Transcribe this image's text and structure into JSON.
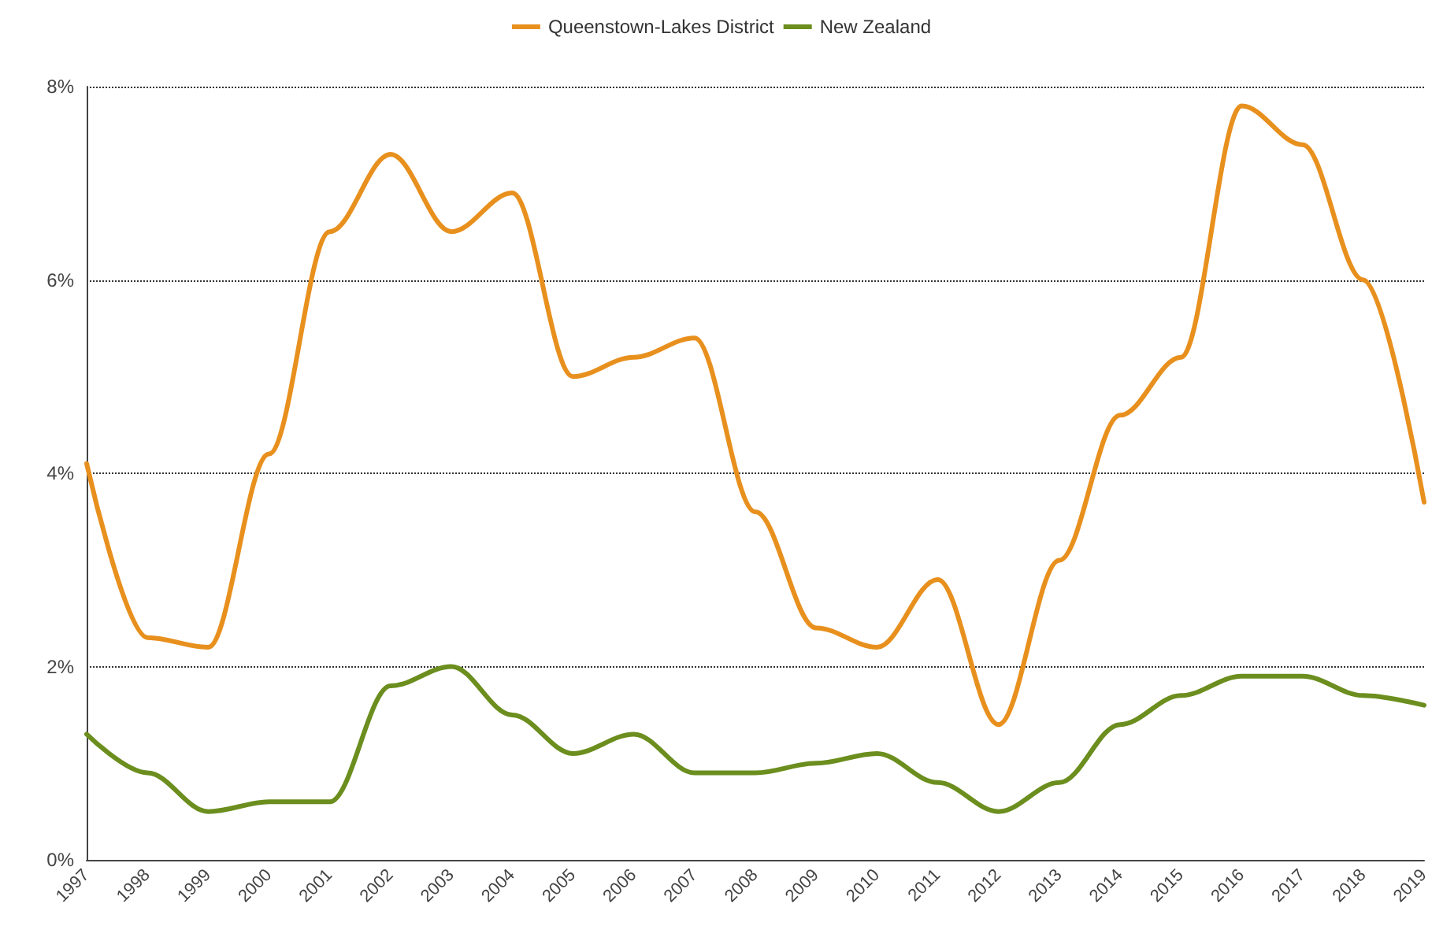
{
  "chart_data": {
    "type": "line",
    "categories": [
      "1997",
      "1998",
      "1999",
      "2000",
      "2001",
      "2002",
      "2003",
      "2004",
      "2005",
      "2006",
      "2007",
      "2008",
      "2009",
      "2010",
      "2011",
      "2012",
      "2013",
      "2014",
      "2015",
      "2016",
      "2017",
      "2018",
      "2019"
    ],
    "series": [
      {
        "name": "Queenstown-Lakes District",
        "color": "#e8901e",
        "values": [
          4.1,
          2.3,
          2.2,
          4.2,
          6.5,
          7.3,
          6.5,
          6.9,
          5.0,
          5.2,
          5.4,
          3.6,
          2.4,
          2.2,
          2.9,
          1.4,
          3.1,
          4.6,
          5.2,
          7.8,
          7.4,
          6.0,
          3.7
        ]
      },
      {
        "name": "New Zealand",
        "color": "#6b8e1e",
        "values": [
          1.3,
          0.9,
          0.5,
          0.6,
          0.6,
          1.8,
          2.0,
          1.5,
          1.1,
          1.3,
          0.9,
          0.9,
          1.0,
          1.1,
          0.8,
          0.5,
          0.8,
          1.4,
          1.7,
          1.9,
          1.9,
          1.7,
          1.6
        ]
      }
    ],
    "ylim": [
      0,
      8
    ],
    "yticks": [
      {
        "value": 0,
        "label": "0%"
      },
      {
        "value": 2,
        "label": "2%"
      },
      {
        "value": 4,
        "label": "4%"
      },
      {
        "value": 6,
        "label": "6%"
      },
      {
        "value": 8,
        "label": "8%"
      }
    ],
    "grid": "y",
    "legend": "top",
    "marker": "none",
    "line_style": "solid"
  }
}
